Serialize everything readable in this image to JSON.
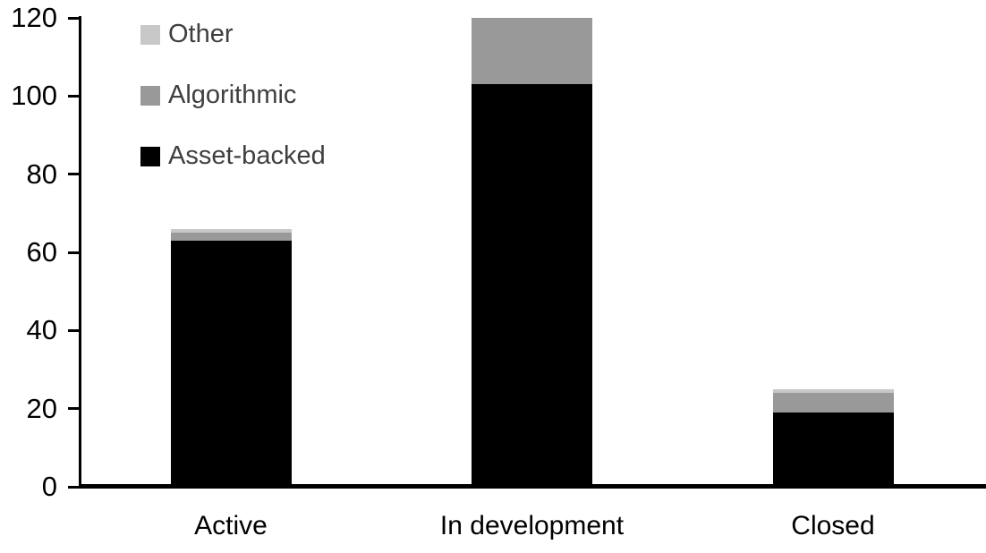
{
  "chart_data": {
    "type": "bar",
    "stacked": true,
    "title": "",
    "xlabel": "",
    "ylabel": "",
    "categories": [
      "Active",
      "In development",
      "Closed"
    ],
    "series": [
      {
        "name": "Asset-backed",
        "color": "#000000",
        "values": [
          63,
          103,
          19
        ]
      },
      {
        "name": "Algorithmic",
        "color": "#999999",
        "values": [
          2,
          17,
          5
        ]
      },
      {
        "name": "Other",
        "color": "#c8c8c8",
        "values": [
          1,
          0,
          1
        ]
      }
    ],
    "totals": [
      66,
      120,
      25
    ],
    "y_ticks": [
      "0",
      "20",
      "40",
      "60",
      "80",
      "100",
      "120"
    ],
    "y_tick_values": [
      0,
      20,
      40,
      60,
      80,
      100,
      120
    ],
    "ylim": [
      0,
      120
    ],
    "grid": false,
    "legend_position": "top-left-inside",
    "legend_order": [
      "Other",
      "Algorithmic",
      "Asset-backed"
    ],
    "legend_text_color": "#3f3f3f",
    "axis_color": "#000000"
  }
}
